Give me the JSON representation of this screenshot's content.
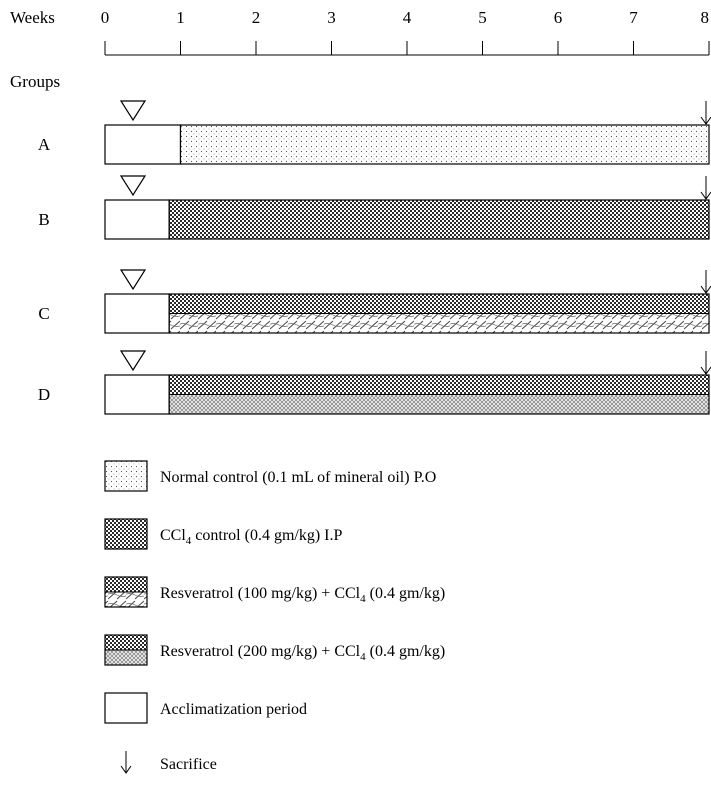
{
  "axis": {
    "label": "Weeks",
    "ticks": [
      "0",
      "1",
      "2",
      "3",
      "4",
      "5",
      "6",
      "7",
      "8"
    ]
  },
  "groups_label": "Groups",
  "groups": [
    {
      "name": "A",
      "treatment": "normal",
      "start_week": 1,
      "end_week": 8
    },
    {
      "name": "B",
      "treatment": "ccl4",
      "start_week": 0.85,
      "end_week": 8
    },
    {
      "name": "C",
      "treatment": "res100",
      "start_week": 0.85,
      "end_week": 8
    },
    {
      "name": "D",
      "treatment": "res200",
      "start_week": 0.85,
      "end_week": 8
    }
  ],
  "legend": [
    {
      "pattern": "normal",
      "parts": [
        {
          "t": "Normal control (0.1 mL of mineral oil) P.O"
        }
      ]
    },
    {
      "pattern": "ccl4",
      "parts": [
        {
          "t": "CCl"
        },
        {
          "t": "4",
          "sub": true
        },
        {
          "t": " control (0.4 gm/kg) I.P"
        }
      ]
    },
    {
      "pattern": "res100",
      "parts": [
        {
          "t": "Resveratrol (100 mg/kg) + CCl"
        },
        {
          "t": "4",
          "sub": true
        },
        {
          "t": " (0.4 gm/kg)"
        }
      ]
    },
    {
      "pattern": "res200",
      "parts": [
        {
          "t": "Resveratrol (200 mg/kg) + CCl"
        },
        {
          "t": "4",
          "sub": true
        },
        {
          "t": " (0.4 gm/kg)"
        }
      ]
    },
    {
      "pattern": "acclim",
      "parts": [
        {
          "t": "Acclimatization period"
        }
      ]
    },
    {
      "pattern": "sacrifice",
      "parts": [
        {
          "t": "Sacrifice"
        }
      ]
    }
  ],
  "colors": {
    "line": "#000000",
    "pattern": "#444444",
    "background": "#ffffff"
  }
}
